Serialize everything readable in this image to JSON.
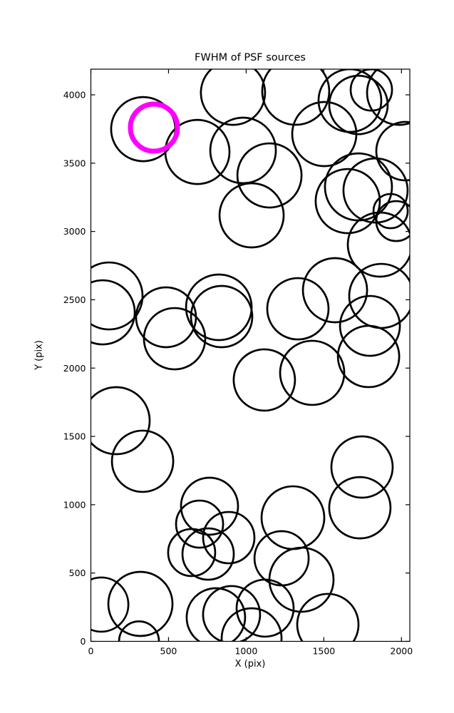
{
  "chart_data": {
    "type": "scatter",
    "title": "FWHM of PSF sources",
    "xlabel": "X (pix)",
    "ylabel": "Y (pix)",
    "xlim": [
      0,
      2055
    ],
    "ylim": [
      0,
      4188
    ],
    "x_ticks": [
      0,
      500,
      1000,
      1500,
      2000
    ],
    "y_ticks": [
      0,
      500,
      1000,
      1500,
      2000,
      2500,
      3000,
      3500,
      4000
    ],
    "grid": false,
    "legend": "none",
    "marker_color": "#000000",
    "highlight_color": "#ff00ff",
    "sources": [
      {
        "x": 337,
        "y": 3749,
        "r": 45
      },
      {
        "x": 915,
        "y": 4015,
        "r": 45
      },
      {
        "x": 686,
        "y": 3582,
        "r": 45
      },
      {
        "x": 980,
        "y": 3593,
        "r": 46
      },
      {
        "x": 1150,
        "y": 3410,
        "r": 45
      },
      {
        "x": 1035,
        "y": 3118,
        "r": 45
      },
      {
        "x": 1319,
        "y": 4026,
        "r": 47
      },
      {
        "x": 1503,
        "y": 3713,
        "r": 45
      },
      {
        "x": 1668,
        "y": 3958,
        "r": 44
      },
      {
        "x": 1723,
        "y": 3926,
        "r": 41
      },
      {
        "x": 1806,
        "y": 4036,
        "r": 29
      },
      {
        "x": 1985,
        "y": 4015,
        "r": 45
      },
      {
        "x": 2026,
        "y": 3588,
        "r": 41
      },
      {
        "x": 1723,
        "y": 3326,
        "r": 47
      },
      {
        "x": 1654,
        "y": 3222,
        "r": 45
      },
      {
        "x": 1833,
        "y": 3300,
        "r": 45
      },
      {
        "x": 1930,
        "y": 3149,
        "r": 24
      },
      {
        "x": 1966,
        "y": 3076,
        "r": 28
      },
      {
        "x": 1861,
        "y": 2904,
        "r": 45
      },
      {
        "x": 117,
        "y": 2528,
        "r": 47
      },
      {
        "x": 76,
        "y": 2408,
        "r": 45
      },
      {
        "x": 484,
        "y": 2372,
        "r": 42
      },
      {
        "x": 539,
        "y": 2215,
        "r": 43
      },
      {
        "x": 824,
        "y": 2445,
        "r": 46
      },
      {
        "x": 842,
        "y": 2377,
        "r": 43
      },
      {
        "x": 1333,
        "y": 2434,
        "r": 43
      },
      {
        "x": 1572,
        "y": 2570,
        "r": 45
      },
      {
        "x": 1870,
        "y": 2528,
        "r": 45
      },
      {
        "x": 1797,
        "y": 2309,
        "r": 42
      },
      {
        "x": 1788,
        "y": 2085,
        "r": 43
      },
      {
        "x": 1425,
        "y": 1965,
        "r": 45
      },
      {
        "x": 1117,
        "y": 1913,
        "r": 43
      },
      {
        "x": 163,
        "y": 1615,
        "r": 47
      },
      {
        "x": 333,
        "y": 1318,
        "r": 43
      },
      {
        "x": 1746,
        "y": 1276,
        "r": 43
      },
      {
        "x": 1732,
        "y": 978,
        "r": 43
      },
      {
        "x": 764,
        "y": 989,
        "r": 40
      },
      {
        "x": 700,
        "y": 858,
        "r": 33
      },
      {
        "x": 649,
        "y": 650,
        "r": 33
      },
      {
        "x": 755,
        "y": 639,
        "r": 36
      },
      {
        "x": 888,
        "y": 759,
        "r": 36
      },
      {
        "x": 1228,
        "y": 608,
        "r": 38
      },
      {
        "x": 1301,
        "y": 905,
        "r": 44
      },
      {
        "x": 1356,
        "y": 451,
        "r": 45
      },
      {
        "x": 805,
        "y": 175,
        "r": 41
      },
      {
        "x": 906,
        "y": 196,
        "r": 40
      },
      {
        "x": 1122,
        "y": 243,
        "r": 40
      },
      {
        "x": 1035,
        "y": 23,
        "r": 42
      },
      {
        "x": 1526,
        "y": 123,
        "r": 43
      },
      {
        "x": 67,
        "y": 269,
        "r": 38
      },
      {
        "x": 319,
        "y": 274,
        "r": 45
      },
      {
        "x": 310,
        "y": 0,
        "r": 28
      }
    ],
    "highlight": {
      "x": 406,
      "y": 3760,
      "r": 33
    }
  }
}
